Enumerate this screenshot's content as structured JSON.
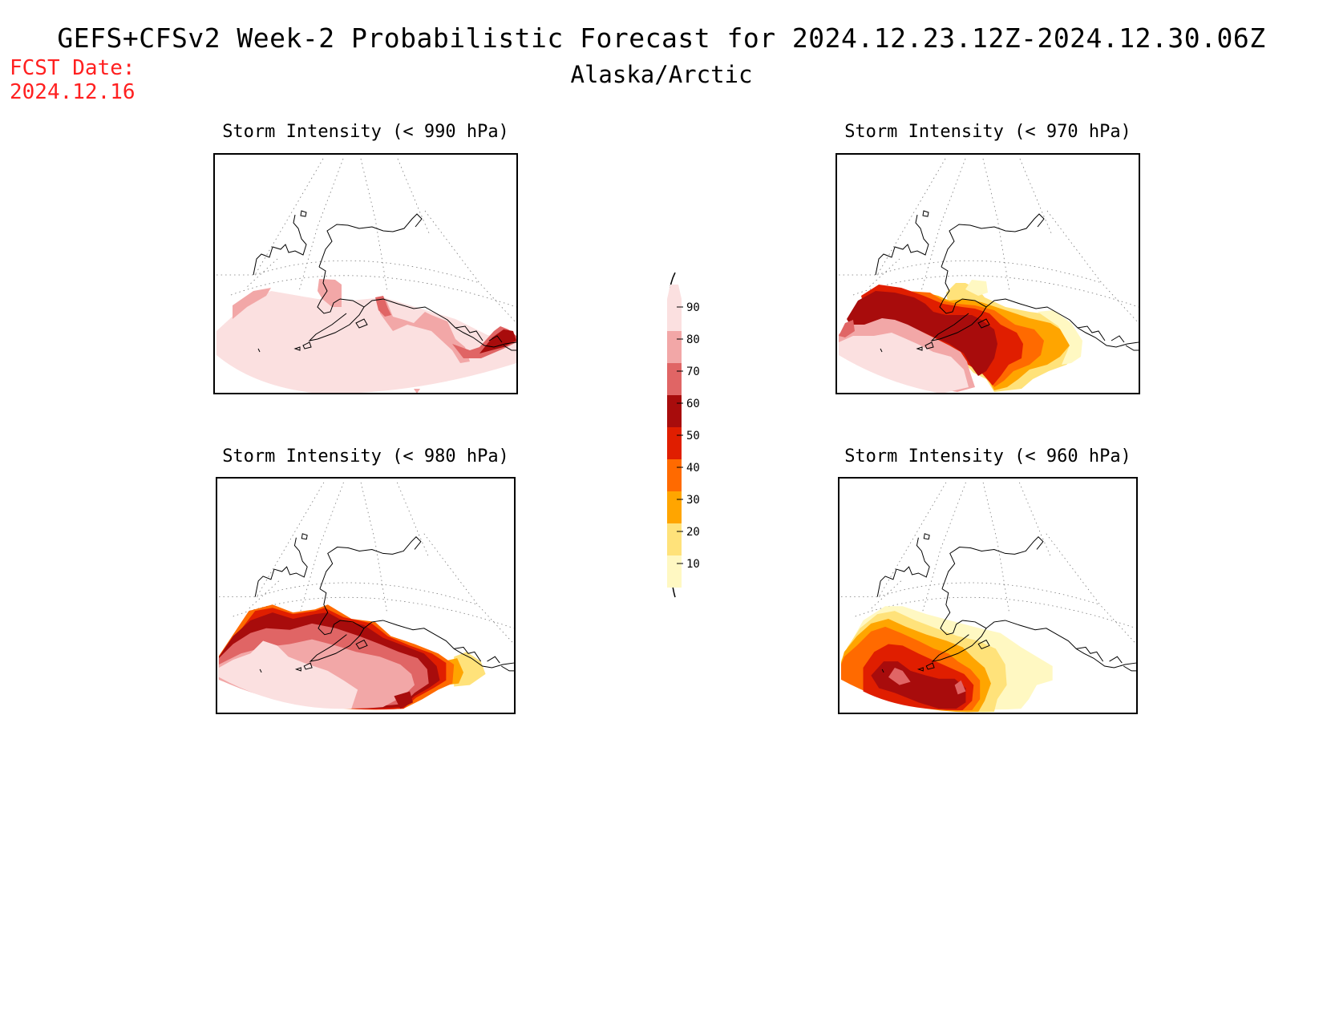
{
  "header": {
    "title": "GEFS+CFSv2 Week-2 Probabilistic Forecast for 2024.12.23.12Z-2024.12.30.06Z",
    "region": "Alaska/Arctic",
    "fcst_label": "FCST Date:",
    "fcst_date": "2024.12.16"
  },
  "panels": {
    "p990": {
      "title": "Storm Intensity (< 990 hPa)"
    },
    "p970": {
      "title": "Storm Intensity (< 970 hPa)"
    },
    "p980": {
      "title": "Storm Intensity (< 980 hPa)"
    },
    "p960": {
      "title": "Storm Intensity (< 960 hPa)"
    }
  },
  "colorbar": {
    "levels": [
      "90",
      "80",
      "70",
      "60",
      "50",
      "40",
      "30",
      "20",
      "10"
    ],
    "colors": [
      "#fbe0e0",
      "#f2a7a7",
      "#e06565",
      "#a80c0c",
      "#e01e00",
      "#ff6a00",
      "#ffa500",
      "#ffe27a",
      "#fff8c2"
    ]
  },
  "legend_colors": {
    "c90": "#fbe0e0",
    "c80": "#f2a7a7",
    "c70": "#e06565",
    "c60": "#a80c0c",
    "c50": "#e01e00",
    "c40": "#ff6a00",
    "c30": "#ffa500",
    "c20": "#ffe27a",
    "c10": "#fff8c2"
  }
}
